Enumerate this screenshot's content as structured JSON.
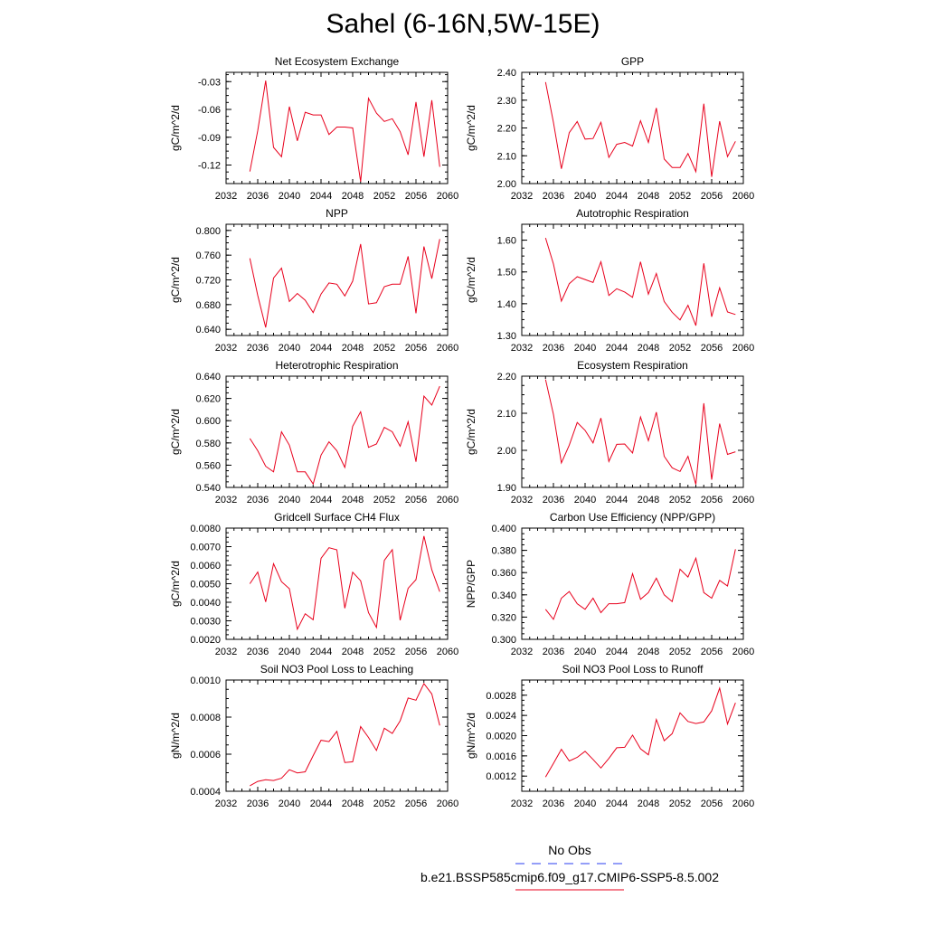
{
  "title": "Sahel (6-16N,5W-15E)",
  "legend": {
    "obs_label": "No Obs",
    "obs_color": "#2a3df0",
    "case_label": "b.e21.BSSP585cmip6.f09_g17.CMIP6-SSP5-8.5.002",
    "case_color": "#e8001c"
  },
  "chart_data": [
    {
      "type": "line",
      "title": "Net Ecosystem Exchange",
      "ylabel": "gC/m^2/d",
      "xlim": [
        2032,
        2060
      ],
      "xticks": [
        2032,
        2036,
        2040,
        2044,
        2048,
        2052,
        2056,
        2060
      ],
      "ylim": [
        -0.14,
        -0.02
      ],
      "yticks": [
        "-0.12",
        "-0.09",
        "-0.06",
        "-0.03"
      ],
      "x": [
        2035,
        2036,
        2037,
        2038,
        2039,
        2040,
        2041,
        2042,
        2043,
        2044,
        2045,
        2046,
        2047,
        2048,
        2049,
        2050,
        2051,
        2052,
        2053,
        2054,
        2055,
        2056,
        2057,
        2058,
        2059
      ],
      "y": [
        -0.127,
        -0.083,
        -0.029,
        -0.101,
        -0.111,
        -0.057,
        -0.094,
        -0.063,
        -0.066,
        -0.066,
        -0.087,
        -0.079,
        -0.079,
        -0.08,
        -0.138,
        -0.048,
        -0.064,
        -0.073,
        -0.07,
        -0.084,
        -0.109,
        -0.052,
        -0.111,
        -0.05,
        -0.122
      ]
    },
    {
      "type": "line",
      "title": "GPP",
      "ylabel": "gC/m^2/d",
      "xlim": [
        2032,
        2060
      ],
      "xticks": [
        2032,
        2036,
        2040,
        2044,
        2048,
        2052,
        2056,
        2060
      ],
      "ylim": [
        2.0,
        2.4
      ],
      "yticks": [
        "2.00",
        "2.10",
        "2.20",
        "2.30",
        "2.40"
      ],
      "x": [
        2035,
        2036,
        2037,
        2038,
        2039,
        2040,
        2041,
        2042,
        2043,
        2044,
        2045,
        2046,
        2047,
        2048,
        2049,
        2050,
        2051,
        2052,
        2053,
        2054,
        2055,
        2056,
        2057,
        2058,
        2059
      ],
      "y": [
        2.365,
        2.22,
        2.053,
        2.183,
        2.223,
        2.16,
        2.162,
        2.22,
        2.094,
        2.141,
        2.148,
        2.135,
        2.226,
        2.148,
        2.272,
        2.088,
        2.058,
        2.058,
        2.108,
        2.043,
        2.287,
        2.024,
        2.224,
        2.097,
        2.152
      ]
    },
    {
      "type": "line",
      "title": "NPP",
      "ylabel": "gC/m^2/d",
      "xlim": [
        2032,
        2060
      ],
      "xticks": [
        2032,
        2036,
        2040,
        2044,
        2048,
        2052,
        2056,
        2060
      ],
      "ylim": [
        0.63,
        0.81
      ],
      "yticks": [
        "0.640",
        "0.680",
        "0.720",
        "0.760",
        "0.800"
      ],
      "x": [
        2035,
        2036,
        2037,
        2038,
        2039,
        2040,
        2041,
        2042,
        2043,
        2044,
        2045,
        2046,
        2047,
        2048,
        2049,
        2050,
        2051,
        2052,
        2053,
        2054,
        2055,
        2056,
        2057,
        2058,
        2059
      ],
      "y": [
        0.755,
        0.695,
        0.643,
        0.723,
        0.739,
        0.685,
        0.698,
        0.687,
        0.667,
        0.697,
        0.715,
        0.713,
        0.694,
        0.718,
        0.778,
        0.681,
        0.683,
        0.709,
        0.713,
        0.713,
        0.758,
        0.666,
        0.774,
        0.722,
        0.786
      ]
    },
    {
      "type": "line",
      "title": "Autotrophic Respiration",
      "ylabel": "gC/m^2/d",
      "xlim": [
        2032,
        2060
      ],
      "xticks": [
        2032,
        2036,
        2040,
        2044,
        2048,
        2052,
        2056,
        2060
      ],
      "ylim": [
        1.3,
        1.65
      ],
      "yticks": [
        "1.30",
        "1.40",
        "1.50",
        "1.60"
      ],
      "x": [
        2035,
        2036,
        2037,
        2038,
        2039,
        2040,
        2041,
        2042,
        2043,
        2044,
        2045,
        2046,
        2047,
        2048,
        2049,
        2050,
        2051,
        2052,
        2053,
        2054,
        2055,
        2056,
        2057,
        2058,
        2059
      ],
      "y": [
        1.607,
        1.525,
        1.408,
        1.463,
        1.485,
        1.476,
        1.467,
        1.532,
        1.426,
        1.447,
        1.437,
        1.42,
        1.532,
        1.43,
        1.495,
        1.407,
        1.373,
        1.349,
        1.395,
        1.331,
        1.527,
        1.359,
        1.45,
        1.374,
        1.366
      ]
    },
    {
      "type": "line",
      "title": "Heterotrophic Respiration",
      "ylabel": "gC/m^2/d",
      "xlim": [
        2032,
        2060
      ],
      "xticks": [
        2032,
        2036,
        2040,
        2044,
        2048,
        2052,
        2056,
        2060
      ],
      "ylim": [
        0.54,
        0.64
      ],
      "yticks": [
        "0.540",
        "0.560",
        "0.580",
        "0.600",
        "0.620",
        "0.640"
      ],
      "x": [
        2035,
        2036,
        2037,
        2038,
        2039,
        2040,
        2041,
        2042,
        2043,
        2044,
        2045,
        2046,
        2047,
        2048,
        2049,
        2050,
        2051,
        2052,
        2053,
        2054,
        2055,
        2056,
        2057,
        2058,
        2059
      ],
      "y": [
        0.584,
        0.573,
        0.559,
        0.554,
        0.59,
        0.578,
        0.554,
        0.554,
        0.543,
        0.569,
        0.581,
        0.573,
        0.558,
        0.595,
        0.608,
        0.576,
        0.579,
        0.594,
        0.59,
        0.577,
        0.599,
        0.563,
        0.622,
        0.614,
        0.631
      ]
    },
    {
      "type": "line",
      "title": "Ecosystem Respiration",
      "ylabel": "gC/m^2/d",
      "xlim": [
        2032,
        2060
      ],
      "xticks": [
        2032,
        2036,
        2040,
        2044,
        2048,
        2052,
        2056,
        2060
      ],
      "ylim": [
        1.9,
        2.2
      ],
      "yticks": [
        "1.90",
        "2.00",
        "2.10",
        "2.20"
      ],
      "x": [
        2035,
        2036,
        2037,
        2038,
        2039,
        2040,
        2041,
        2042,
        2043,
        2044,
        2045,
        2046,
        2047,
        2048,
        2049,
        2050,
        2051,
        2052,
        2053,
        2054,
        2055,
        2056,
        2057,
        2058,
        2059
      ],
      "y": [
        2.191,
        2.097,
        1.966,
        2.014,
        2.075,
        2.054,
        2.02,
        2.087,
        1.97,
        2.016,
        2.017,
        1.993,
        2.09,
        2.026,
        2.103,
        1.984,
        1.953,
        1.943,
        1.984,
        1.908,
        2.127,
        1.921,
        2.072,
        1.989,
        1.996
      ]
    },
    {
      "type": "line",
      "title": "Gridcell Surface CH4 Flux",
      "ylabel": "gC/m^2/d",
      "xlim": [
        2032,
        2060
      ],
      "xticks": [
        2032,
        2036,
        2040,
        2044,
        2048,
        2052,
        2056,
        2060
      ],
      "ylim": [
        0.002,
        0.008
      ],
      "yticks": [
        "0.0020",
        "0.0030",
        "0.0040",
        "0.0050",
        "0.0060",
        "0.0070",
        "0.0080"
      ],
      "x": [
        2035,
        2036,
        2037,
        2038,
        2039,
        2040,
        2041,
        2042,
        2043,
        2044,
        2045,
        2046,
        2047,
        2048,
        2049,
        2050,
        2051,
        2052,
        2053,
        2054,
        2055,
        2056,
        2057,
        2058,
        2059
      ],
      "y": [
        0.005,
        0.00563,
        0.00402,
        0.00608,
        0.00511,
        0.00473,
        0.00254,
        0.00338,
        0.00306,
        0.00637,
        0.00694,
        0.00683,
        0.00368,
        0.00562,
        0.00516,
        0.00344,
        0.00264,
        0.00626,
        0.00684,
        0.00303,
        0.00475,
        0.00522,
        0.00757,
        0.00575,
        0.00457
      ]
    },
    {
      "type": "line",
      "title": "Carbon Use Efficiency (NPP/GPP)",
      "ylabel": "NPP/GPP",
      "xlim": [
        2032,
        2060
      ],
      "xticks": [
        2032,
        2036,
        2040,
        2044,
        2048,
        2052,
        2056,
        2060
      ],
      "ylim": [
        0.3,
        0.4
      ],
      "yticks": [
        "0.300",
        "0.320",
        "0.340",
        "0.360",
        "0.380",
        "0.400"
      ],
      "x": [
        2035,
        2036,
        2037,
        2038,
        2039,
        2040,
        2041,
        2042,
        2043,
        2044,
        2045,
        2046,
        2047,
        2048,
        2049,
        2050,
        2051,
        2052,
        2053,
        2054,
        2055,
        2056,
        2057,
        2058,
        2059
      ],
      "y": [
        0.327,
        0.318,
        0.337,
        0.343,
        0.332,
        0.327,
        0.337,
        0.324,
        0.332,
        0.332,
        0.333,
        0.359,
        0.336,
        0.342,
        0.355,
        0.34,
        0.334,
        0.363,
        0.356,
        0.373,
        0.342,
        0.337,
        0.353,
        0.348,
        0.381
      ]
    },
    {
      "type": "line",
      "title": "Soil NO3 Pool Loss to Leaching",
      "ylabel": "gN/m^2/d",
      "xlim": [
        2032,
        2060
      ],
      "xticks": [
        2032,
        2036,
        2040,
        2044,
        2048,
        2052,
        2056,
        2060
      ],
      "ylim": [
        0.0004,
        0.001
      ],
      "yticks": [
        "0.0004",
        "0.0006",
        "0.0008",
        "0.0010"
      ],
      "x": [
        2035,
        2036,
        2037,
        2038,
        2039,
        2040,
        2041,
        2042,
        2043,
        2044,
        2045,
        2046,
        2047,
        2048,
        2049,
        2050,
        2051,
        2052,
        2053,
        2054,
        2055,
        2056,
        2057,
        2058,
        2059
      ],
      "y": [
        0.00043,
        0.000453,
        0.000462,
        0.000458,
        0.00047,
        0.000516,
        0.000499,
        0.000505,
        0.000592,
        0.000675,
        0.000668,
        0.000723,
        0.000555,
        0.000559,
        0.000749,
        0.00069,
        0.00062,
        0.00074,
        0.000712,
        0.00078,
        0.000903,
        0.000891,
        0.000981,
        0.000925,
        0.000755
      ]
    },
    {
      "type": "line",
      "title": "Soil NO3 Pool Loss to Runoff",
      "ylabel": "gN/m^2/d",
      "xlim": [
        2032,
        2060
      ],
      "xticks": [
        2032,
        2036,
        2040,
        2044,
        2048,
        2052,
        2056,
        2060
      ],
      "ylim": [
        0.0009,
        0.0031
      ],
      "yticks": [
        "0.0012",
        "0.0016",
        "0.0020",
        "0.0024",
        "0.0028"
      ],
      "x": [
        2035,
        2036,
        2037,
        2038,
        2039,
        2040,
        2041,
        2042,
        2043,
        2044,
        2045,
        2046,
        2047,
        2048,
        2049,
        2050,
        2051,
        2052,
        2053,
        2054,
        2055,
        2056,
        2057,
        2058,
        2059
      ],
      "y": [
        0.00118,
        0.00145,
        0.00173,
        0.0015,
        0.00157,
        0.00169,
        0.00153,
        0.00136,
        0.00155,
        0.00176,
        0.00177,
        0.00201,
        0.00174,
        0.00162,
        0.00232,
        0.0019,
        0.00204,
        0.00245,
        0.00228,
        0.00224,
        0.00227,
        0.00249,
        0.00294,
        0.00223,
        0.00265
      ]
    }
  ]
}
